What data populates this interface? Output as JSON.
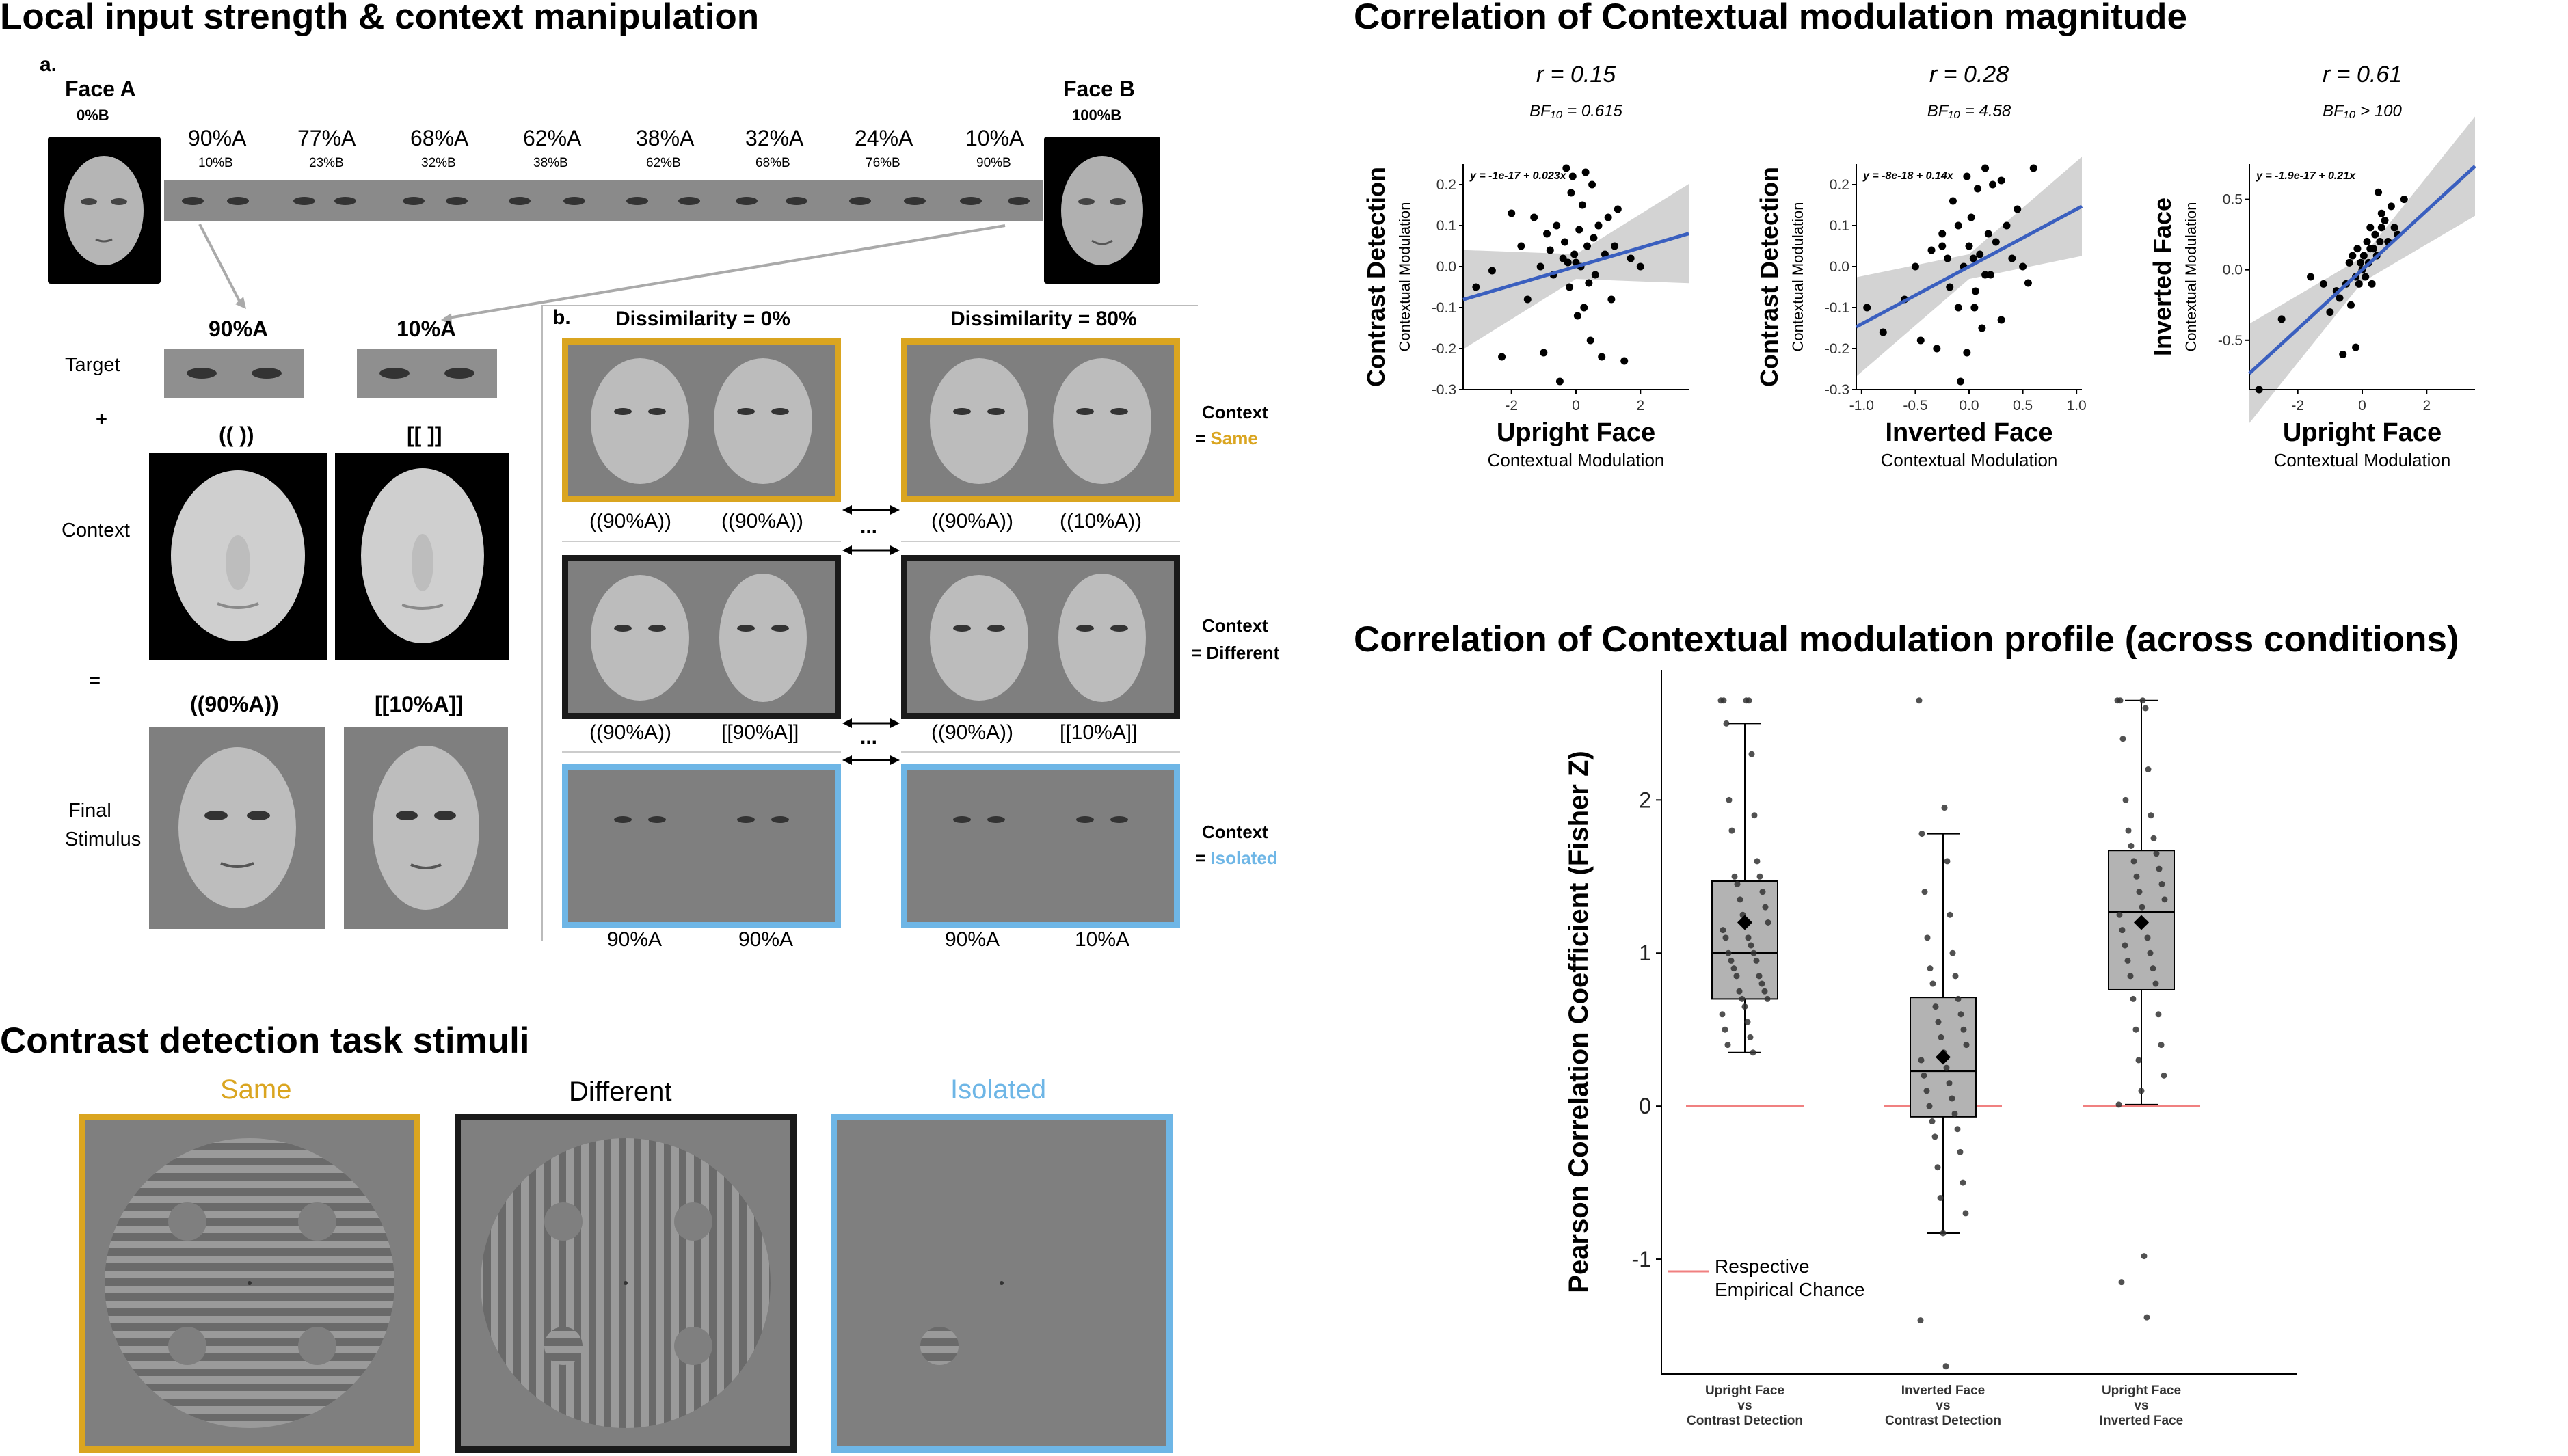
{
  "left_panel": {
    "title": "Local input strength & context manipulation",
    "panel_a_label": "a.",
    "panel_b_label": "b.",
    "face_a": {
      "name": "Face A",
      "sub": "0%B"
    },
    "face_b": {
      "name": "Face B",
      "sub": "100%B"
    },
    "morph_steps": [
      {
        "top": "90%A",
        "bottom": "10%B"
      },
      {
        "top": "77%A",
        "bottom": "23%B"
      },
      {
        "top": "68%A",
        "bottom": "32%B"
      },
      {
        "top": "62%A",
        "bottom": "38%B"
      },
      {
        "top": "38%A",
        "bottom": "62%B"
      },
      {
        "top": "32%A",
        "bottom": "68%B"
      },
      {
        "top": "24%A",
        "bottom": "76%B"
      },
      {
        "top": "10%A",
        "bottom": "90%B"
      }
    ],
    "target_label": "Target",
    "plus": "+",
    "context_label": "Context",
    "equals": "=",
    "final_label_1": "Final",
    "final_label_2": "Stimulus",
    "target_left": "90%A",
    "target_right": "10%A",
    "context_left": "(( ))",
    "context_right": "[[ ]]",
    "final_left": "((90%A))",
    "final_right": "[[10%A]]",
    "dissim_left": "Dissimilarity = 0%",
    "dissim_right": "Dissimilarity = 80%",
    "ellipsis": "...",
    "rows": [
      {
        "labels": [
          "((90%A))",
          "((90%A))",
          "((90%A))",
          "((10%A))"
        ],
        "ctx": "Context",
        "ctx_value": "Same",
        "color": "#DAA520"
      },
      {
        "labels": [
          "((90%A))",
          "[[90%A]]",
          "((90%A))",
          "[[10%A]]"
        ],
        "ctx": "Context",
        "ctx_value": "Different",
        "color": "#000000"
      },
      {
        "labels": [
          "90%A",
          "90%A",
          "90%A",
          "10%A"
        ],
        "ctx": "Context",
        "ctx_value": "Isolated",
        "color": "#6EB6E6"
      }
    ],
    "ctx_prefix": "= ",
    "contrast_title": "Contrast detection task stimuli",
    "contrast_panels": [
      {
        "label": "Same",
        "color": "#DAA520"
      },
      {
        "label": "Different",
        "color": "#000000"
      },
      {
        "label": "Isolated",
        "color": "#6EB6E6"
      }
    ]
  },
  "magnitude": {
    "title": "Correlation of Contextual modulation magnitude",
    "subplots": [
      {
        "r": "r = 0.15",
        "bf": "BF₁₀ = 0.615",
        "eq": "y = -1e-17 + 0.023x",
        "ylabel_main": "Contrast Detection",
        "ylabel_sub": "Contextual Modulation",
        "xlabel_main": "Upright Face",
        "xlabel_sub": "Contextual Modulation",
        "xticks": [
          "-2",
          "0",
          "2"
        ],
        "yticks": [
          "-0.3",
          "-0.2",
          "-0.1",
          "0.0",
          "0.1",
          "0.2"
        ]
      },
      {
        "r": "r = 0.28",
        "bf": "BF₁₀ = 4.58",
        "eq": "y = -8e-18 + 0.14x",
        "ylabel_main": "Contrast Detection",
        "ylabel_sub": "Contextual Modulation",
        "xlabel_main": "Inverted Face",
        "xlabel_sub": "Contextual Modulation",
        "xticks": [
          "-1.0",
          "-0.5",
          "0.0",
          "0.5",
          "1.0"
        ],
        "yticks": [
          "-0.3",
          "-0.2",
          "-0.1",
          "0.0",
          "0.1",
          "0.2"
        ]
      },
      {
        "r": "r = 0.61",
        "bf": "BF₁₀ > 100",
        "eq": "y = -1.9e-17 + 0.21x",
        "ylabel_main": "Inverted Face",
        "ylabel_sub": "Contextual Modulation",
        "xlabel_main": "Upright Face",
        "xlabel_sub": "Contextual Modulation",
        "xticks": [
          "-2",
          "0",
          "2"
        ],
        "yticks": [
          "-0.5",
          "0.0",
          "0.5"
        ]
      }
    ]
  },
  "profile": {
    "title": "Correlation of Contextual modulation profile (across conditions)",
    "ylabel": "Pearson Correlation Coefficient (Fisher Z)",
    "yticks": [
      "-1",
      "0",
      "1",
      "2"
    ],
    "legend_line1": "Respective",
    "legend_line2": "Empirical Chance",
    "categories": [
      [
        "Upright Face",
        "vs",
        "Contrast Detection"
      ],
      [
        "Inverted Face",
        "vs",
        "Contrast Detection"
      ],
      [
        "Upright Face",
        "vs",
        "Inverted Face"
      ]
    ]
  },
  "chart_data": [
    {
      "type": "scatter",
      "x": [
        -3.1,
        -2.6,
        -2.3,
        -2.0,
        -1.7,
        -1.5,
        -1.3,
        -1.1,
        -1.0,
        -0.9,
        -0.8,
        -0.7,
        -0.6,
        -0.5,
        -0.4,
        -0.35,
        -0.3,
        -0.25,
        -0.2,
        -0.15,
        -0.1,
        -0.05,
        0.0,
        0.05,
        0.1,
        0.15,
        0.2,
        0.25,
        0.3,
        0.35,
        0.4,
        0.45,
        0.5,
        0.55,
        0.6,
        0.7,
        0.8,
        0.9,
        1.0,
        1.1,
        1.2,
        1.3,
        1.5,
        1.7,
        2.0
      ],
      "y": [
        -0.05,
        -0.01,
        -0.22,
        0.13,
        0.05,
        -0.08,
        0.12,
        0.0,
        -0.21,
        0.08,
        0.04,
        -0.02,
        0.1,
        -0.28,
        0.02,
        0.06,
        0.24,
        0.01,
        -0.05,
        0.18,
        0.22,
        0.03,
        0.01,
        -0.12,
        0.09,
        0.0,
        0.15,
        -0.1,
        0.23,
        0.05,
        -0.04,
        -0.18,
        0.2,
        0.07,
        -0.02,
        0.1,
        -0.22,
        0.03,
        0.12,
        -0.08,
        0.05,
        0.14,
        -0.23,
        0.02,
        0.0
      ],
      "trend": {
        "intercept": 0.0,
        "slope": 0.023
      },
      "xlim": [
        -3.5,
        3.5
      ],
      "ylim": [
        -0.3,
        0.25
      ],
      "xlabel": "Upright Face Contextual Modulation",
      "ylabel": "Contrast Detection Contextual Modulation"
    },
    {
      "type": "scatter",
      "x": [
        -0.95,
        -0.8,
        -0.6,
        -0.5,
        -0.45,
        -0.35,
        -0.3,
        -0.25,
        -0.2,
        -0.18,
        -0.15,
        -0.1,
        -0.08,
        -0.05,
        -0.02,
        0.0,
        0.02,
        0.05,
        0.08,
        0.1,
        0.12,
        0.15,
        0.18,
        0.2,
        0.22,
        0.25,
        0.3,
        0.35,
        0.4,
        0.45,
        0.5,
        0.55,
        0.6,
        -0.02,
        0.06,
        -0.1,
        0.15,
        0.3,
        -0.25,
        0.04
      ],
      "y": [
        -0.1,
        -0.16,
        -0.08,
        0.0,
        -0.18,
        0.04,
        -0.2,
        0.08,
        0.02,
        -0.05,
        0.16,
        0.1,
        -0.28,
        0.0,
        -0.21,
        0.05,
        0.12,
        -0.1,
        0.19,
        0.03,
        -0.15,
        0.24,
        0.08,
        -0.02,
        0.2,
        0.06,
        -0.13,
        0.1,
        0.02,
        0.14,
        0.0,
        -0.04,
        0.24,
        0.22,
        -0.06,
        -0.1,
        -0.02,
        0.21,
        0.05,
        0.02
      ],
      "trend": {
        "intercept": 0.0,
        "slope": 0.14
      },
      "xlim": [
        -1.05,
        1.05
      ],
      "ylim": [
        -0.3,
        0.25
      ],
      "xlabel": "Inverted Face Contextual Modulation",
      "ylabel": "Contrast Detection Contextual Modulation"
    },
    {
      "type": "scatter",
      "x": [
        -3.2,
        -2.5,
        -1.6,
        -1.2,
        -1.0,
        -0.8,
        -0.7,
        -0.6,
        -0.5,
        -0.4,
        -0.35,
        -0.3,
        -0.2,
        -0.15,
        -0.1,
        -0.05,
        0.0,
        0.05,
        0.1,
        0.15,
        0.2,
        0.25,
        0.3,
        0.35,
        0.4,
        0.45,
        0.5,
        0.55,
        0.6,
        0.7,
        0.8,
        0.9,
        1.0,
        1.1,
        1.3,
        -0.2,
        0.25,
        0.6
      ],
      "y": [
        -0.85,
        -0.35,
        -0.05,
        -0.1,
        -0.3,
        -0.15,
        -0.2,
        -0.6,
        -0.1,
        0.05,
        -0.25,
        0.1,
        -0.05,
        0.15,
        -0.1,
        0.05,
        0.0,
        0.1,
        -0.05,
        0.2,
        0.05,
        0.3,
        -0.1,
        0.15,
        0.25,
        0.1,
        0.55,
        0.2,
        0.4,
        0.35,
        0.2,
        0.45,
        0.3,
        0.25,
        0.5,
        -0.55,
        0.15,
        0.3
      ],
      "trend": {
        "intercept": 0.0,
        "slope": 0.21
      },
      "xlim": [
        -3.5,
        3.5
      ],
      "ylim": [
        -0.85,
        0.75
      ],
      "xlabel": "Upright Face Contextual Modulation",
      "ylabel": "Inverted Face Contextual Modulation"
    },
    {
      "type": "box",
      "categories": [
        "Upright Face vs Contrast Detection",
        "Inverted Face vs Contrast Detection",
        "Upright Face vs Inverted Face"
      ],
      "ylabel": "Pearson Correlation Coefficient (Fisher Z)",
      "ylim": [
        -1.75,
        2.85
      ],
      "boxes": [
        {
          "whisker_low": 0.35,
          "q1": 0.7,
          "median": 1.0,
          "q3": 1.47,
          "whisker_high": 2.5,
          "mean": 1.2,
          "points": [
            2.65,
            2.65,
            2.65,
            2.65,
            2.5,
            2.3,
            2.0,
            1.9,
            1.8,
            1.6,
            1.5,
            1.5,
            1.45,
            1.4,
            1.35,
            1.3,
            1.25,
            1.2,
            1.2,
            1.15,
            1.1,
            1.1,
            1.05,
            1.0,
            1.0,
            0.95,
            0.95,
            0.9,
            0.85,
            0.85,
            0.8,
            0.75,
            0.75,
            0.7,
            0.7,
            0.65,
            0.6,
            0.55,
            0.5,
            0.45,
            0.4,
            0.35
          ]
        },
        {
          "whisker_low": -0.83,
          "q1": -0.07,
          "median": 0.23,
          "q3": 0.71,
          "whisker_high": 1.78,
          "mean": 0.32,
          "points": [
            2.65,
            1.95,
            1.78,
            1.6,
            1.4,
            1.25,
            1.1,
            1.0,
            0.9,
            0.85,
            0.8,
            0.7,
            0.65,
            0.6,
            0.55,
            0.5,
            0.45,
            0.4,
            0.35,
            0.3,
            0.25,
            0.2,
            0.15,
            0.1,
            0.05,
            0.0,
            -0.05,
            -0.1,
            -0.15,
            -0.2,
            -0.3,
            -0.4,
            -0.5,
            -0.6,
            -0.7,
            -0.83,
            -1.4,
            -1.7
          ]
        },
        {
          "whisker_low": 0.01,
          "q1": 0.76,
          "median": 1.27,
          "q3": 1.67,
          "whisker_high": 2.65,
          "mean": 1.2,
          "points": [
            2.65,
            2.65,
            2.65,
            2.6,
            2.4,
            2.2,
            2.0,
            1.9,
            1.8,
            1.75,
            1.7,
            1.65,
            1.6,
            1.55,
            1.5,
            1.45,
            1.4,
            1.35,
            1.3,
            1.25,
            1.2,
            1.15,
            1.1,
            1.05,
            1.0,
            0.95,
            0.9,
            0.85,
            0.8,
            0.7,
            0.6,
            0.5,
            0.4,
            0.3,
            0.2,
            0.1,
            0.01,
            -0.98,
            -1.15,
            -1.38
          ]
        }
      ],
      "chance": [
        0.0,
        0.0,
        0.0
      ]
    }
  ]
}
